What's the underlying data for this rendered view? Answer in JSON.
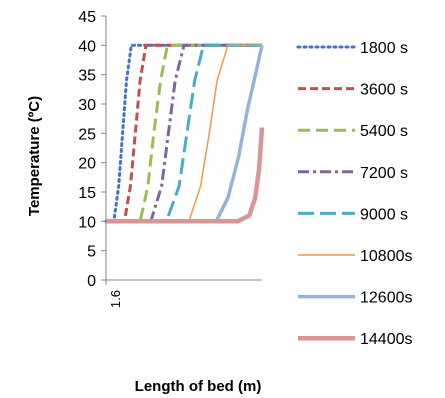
{
  "chart_data": {
    "type": "line",
    "xlabel": "Length of bed (m)",
    "ylabel": "Temperature (ºC)",
    "xtick_labels": [
      "1.6"
    ],
    "ylim": [
      0,
      45
    ],
    "yticks": [
      0,
      5,
      10,
      15,
      20,
      25,
      30,
      35,
      40,
      45
    ],
    "xlim": [
      0,
      1.6
    ],
    "grid": false,
    "legend_position": "right",
    "series": [
      {
        "name": "1800 s",
        "color": "#4472C4",
        "dash": "dotted",
        "x": [
          0,
          0.08,
          0.13,
          0.17,
          0.21,
          0.26,
          1.6
        ],
        "y": [
          10,
          10,
          16,
          25,
          34,
          40,
          40
        ]
      },
      {
        "name": "3600 s",
        "color": "#C0504D",
        "dash": "dash",
        "x": [
          0,
          0.19,
          0.25,
          0.3,
          0.35,
          0.41,
          1.6
        ],
        "y": [
          10,
          10,
          16,
          25,
          34,
          40,
          40
        ]
      },
      {
        "name": "5400 s",
        "color": "#9BBB59",
        "dash": "longdash",
        "x": [
          0,
          0.35,
          0.43,
          0.49,
          0.56,
          0.63,
          1.6
        ],
        "y": [
          10,
          10,
          16,
          25,
          34,
          40,
          40
        ]
      },
      {
        "name": "7200 s",
        "color": "#8064A2",
        "dash": "dashdot",
        "x": [
          0,
          0.46,
          0.57,
          0.64,
          0.71,
          0.8,
          1.6
        ],
        "y": [
          10,
          10,
          16,
          25,
          34,
          40,
          40
        ]
      },
      {
        "name": "9000 s",
        "color": "#4BACC6",
        "dash": "longdash2",
        "x": [
          0,
          0.62,
          0.75,
          0.83,
          0.91,
          1.0,
          1.6
        ],
        "y": [
          10,
          10,
          16,
          25,
          34,
          40,
          40
        ]
      },
      {
        "name": "10800s",
        "color": "#F79646",
        "dash": "solid",
        "x": [
          0,
          0.85,
          0.97,
          1.06,
          1.14,
          1.25,
          1.6
        ],
        "y": [
          10,
          10,
          16,
          25,
          34,
          40,
          40
        ]
      },
      {
        "name": "12600s",
        "color": "#95B3D7",
        "dash": "solidthick",
        "x": [
          0,
          1.13,
          1.25,
          1.36,
          1.45,
          1.56,
          1.6
        ],
        "y": [
          10,
          10,
          14,
          21,
          29,
          37,
          40
        ]
      },
      {
        "name": "14400s",
        "color": "#D99694",
        "dash": "solidthicker",
        "x": [
          0,
          1.35,
          1.47,
          1.53,
          1.57,
          1.6
        ],
        "y": [
          10,
          10,
          11,
          14,
          19,
          26
        ]
      }
    ]
  }
}
